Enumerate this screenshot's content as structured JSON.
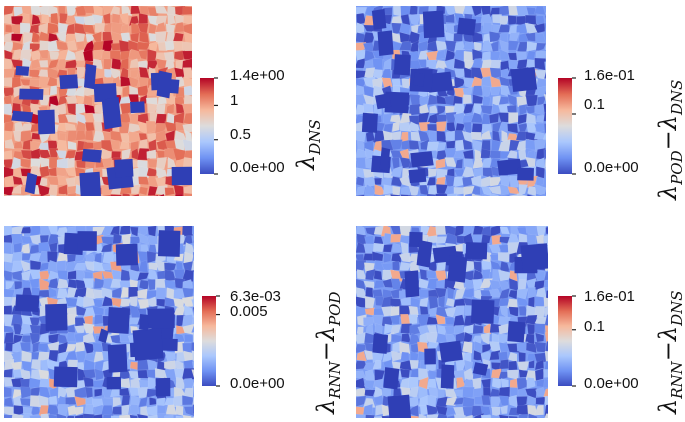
{
  "panels": [
    {
      "id": "dns",
      "field_label": {
        "symbol": "λ",
        "subscript": "DNS",
        "op": "",
        "symbol2": "",
        "subscript2": ""
      },
      "colorbar": {
        "tick_labels": [
          "1.4e+00",
          "1",
          "0.5",
          "0.0e+00"
        ],
        "tick_values": [
          1.4,
          1.0,
          0.5,
          0.0
        ],
        "max": 1.4,
        "min": 0.0
      },
      "field_mean_level": 0.72
    },
    {
      "id": "pod-minus-dns",
      "field_label": {
        "symbol": "λ",
        "subscript": "POD",
        "op": "−",
        "symbol2": "λ",
        "subscript2": "DNS"
      },
      "colorbar": {
        "tick_labels": [
          "1.6e-01",
          "0.1",
          "0.0e+00"
        ],
        "tick_values": [
          0.16,
          0.1,
          0.0
        ],
        "max": 0.16,
        "min": 0.0
      },
      "field_mean_level": 0.2
    },
    {
      "id": "rnn-minus-pod",
      "field_label": {
        "symbol": "λ",
        "subscript": "RNN",
        "op": "−",
        "symbol2": "λ",
        "subscript2": "POD"
      },
      "colorbar": {
        "tick_labels": [
          "6.3e-03",
          "0.005",
          "0.0e+00"
        ],
        "tick_values": [
          0.0063,
          0.005,
          0.0
        ],
        "max": 0.0063,
        "min": 0.0
      },
      "field_mean_level": 0.22
    },
    {
      "id": "rnn-minus-dns",
      "field_label": {
        "symbol": "λ",
        "subscript": "RNN",
        "op": "−",
        "symbol2": "λ",
        "subscript2": "DNS"
      },
      "colorbar": {
        "tick_labels": [
          "1.6e-01",
          "0.1",
          "0.0e+00"
        ],
        "tick_values": [
          0.16,
          0.1,
          0.0
        ],
        "max": 0.16,
        "min": 0.0
      },
      "field_mean_level": 0.2
    }
  ],
  "colormap": [
    "#3b4cc0",
    "#6f92f3",
    "#aac7fd",
    "#dddcdc",
    "#f6b89c",
    "#e36c55",
    "#b40426"
  ]
}
